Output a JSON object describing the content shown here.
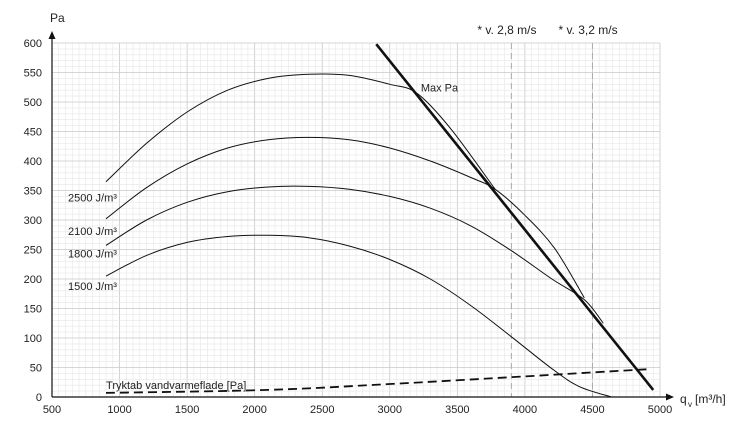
{
  "chart_data": {
    "type": "line",
    "xlabel": "q",
    "xlabel_sub": "v",
    "xlabel_unit": "[m³/h]",
    "ylabel": "Pa",
    "xlim": [
      500,
      5000
    ],
    "ylim": [
      0,
      600
    ],
    "x_ticks": [
      500,
      1000,
      1500,
      2000,
      2500,
      3000,
      3500,
      4000,
      4500,
      5000
    ],
    "y_ticks": [
      0,
      50,
      100,
      150,
      200,
      250,
      300,
      350,
      400,
      450,
      500,
      550,
      600
    ],
    "grid": true,
    "series": [
      {
        "name": "2500 J/m³",
        "x": [
          900,
          1200,
          1500,
          1800,
          2100,
          2400,
          2700,
          3000,
          3200,
          3450,
          3780
        ],
        "y": [
          365,
          430,
          483,
          520,
          540,
          547,
          545,
          530,
          515,
          455,
          352
        ]
      },
      {
        "name": "2100 J/m³",
        "x": [
          900,
          1200,
          1500,
          1800,
          2100,
          2400,
          2700,
          3000,
          3300,
          3600,
          3780,
          4000,
          4220,
          4440
        ],
        "y": [
          302,
          355,
          395,
          422,
          436,
          440,
          436,
          422,
          400,
          372,
          352,
          308,
          252,
          168
        ]
      },
      {
        "name": "1800 J/m³",
        "x": [
          900,
          1200,
          1500,
          1800,
          2100,
          2400,
          2700,
          3000,
          3300,
          3600,
          3900,
          4200,
          4440,
          4580
        ],
        "y": [
          257,
          300,
          330,
          348,
          356,
          357,
          352,
          340,
          320,
          290,
          248,
          200,
          165,
          125
        ]
      },
      {
        "name": "1500 J/m³",
        "x": [
          900,
          1200,
          1500,
          1800,
          2100,
          2400,
          2700,
          3000,
          3300,
          3600,
          3900,
          4200,
          4400,
          4640
        ],
        "y": [
          205,
          240,
          262,
          272,
          274,
          270,
          256,
          233,
          200,
          155,
          102,
          48,
          18,
          0
        ]
      },
      {
        "name": "Max Pa",
        "x": [
          2900,
          4950
        ],
        "y": [
          598,
          12
        ]
      },
      {
        "name": "Tryktab vandvarmeflade [Pa]",
        "x": [
          900,
          2100,
          3000,
          4000,
          4900
        ],
        "y": [
          7,
          12,
          22,
          35,
          47
        ]
      }
    ],
    "reference_lines": [
      {
        "label": "* v. 2,8 m/s",
        "x": 3900
      },
      {
        "label": "* v. 3,2 m/s",
        "x": 4500
      }
    ],
    "annotations": [
      {
        "text": "Max Pa",
        "x": 3230,
        "y": 525
      },
      {
        "text": "Tryktab vandvarmeflade [Pa]",
        "x": 900,
        "y": 20
      }
    ]
  }
}
